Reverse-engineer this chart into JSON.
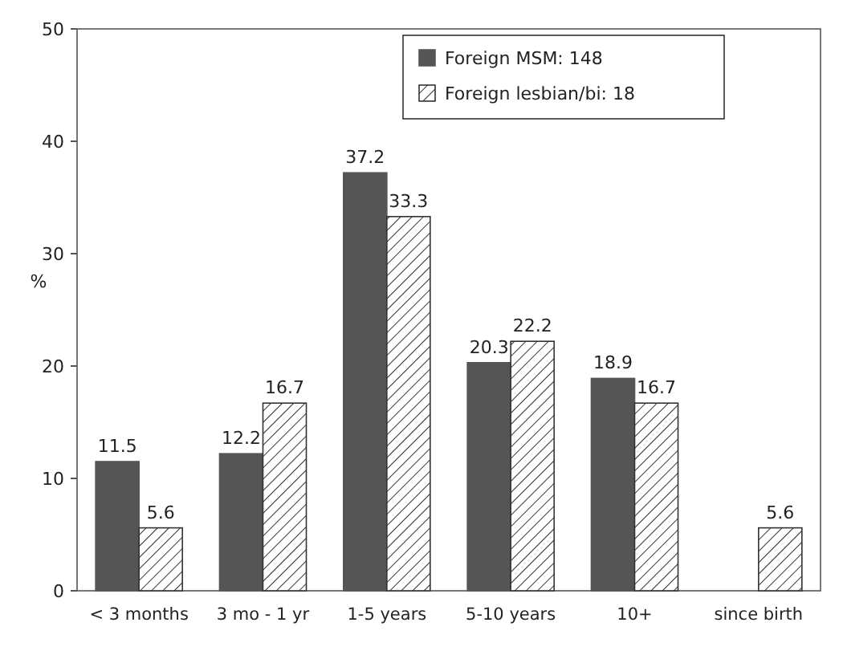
{
  "chart_data": {
    "type": "bar",
    "ylabel": "%",
    "categories": [
      "< 3 months",
      "3 mo - 1 yr",
      "1-5 years",
      "5-10 years",
      "10+",
      "since birth"
    ],
    "series": [
      {
        "name": "Foreign MSM: 148",
        "color": "#555555",
        "values": [
          11.5,
          12.2,
          37.2,
          20.3,
          18.9,
          null
        ]
      },
      {
        "name": "Foreign lesbian/bi: 18",
        "color": "#333333",
        "values": [
          5.6,
          16.7,
          33.3,
          22.2,
          16.7,
          5.6
        ]
      }
    ],
    "ylim": [
      0,
      50
    ],
    "yticks": [
      0,
      10,
      20,
      30,
      40,
      50
    ],
    "grid": false,
    "legend": "top right",
    "data_labels": true
  }
}
